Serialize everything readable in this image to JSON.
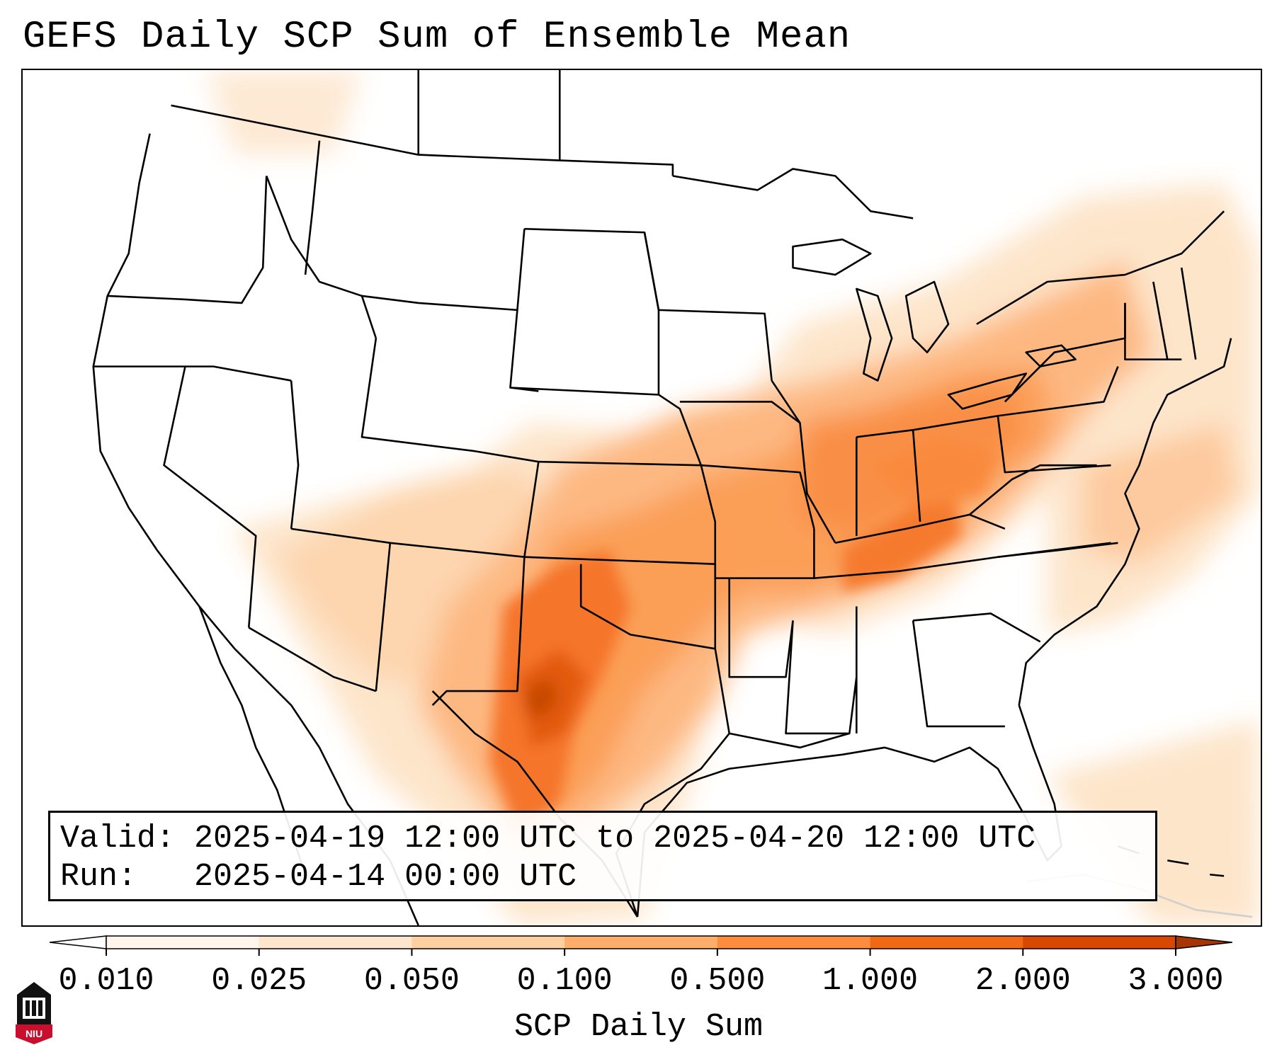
{
  "title": "GEFS Daily SCP Sum of Ensemble Mean",
  "info": {
    "valid_line": "Valid: 2025-04-19 12:00 UTC to 2025-04-20 12:00 UTC",
    "run_line": "Run:   2025-04-14 00:00 UTC"
  },
  "colorbar": {
    "label": "SCP Daily Sum",
    "ticks": [
      "0.010",
      "0.025",
      "0.050",
      "0.100",
      "0.500",
      "1.000",
      "2.000",
      "3.000"
    ],
    "colors": [
      "#fff5eb",
      "#fee6ce",
      "#fdd0a2",
      "#fdae6b",
      "#fd8d3c",
      "#f16913",
      "#d94801",
      "#a63603"
    ],
    "extend": "both"
  },
  "map": {
    "projection": "Lambert conformal",
    "region": "Continental United States",
    "features": [
      "state-borders",
      "coastlines",
      "great-lakes"
    ]
  },
  "logo": {
    "text": "NIU",
    "icon": "university-building-icon"
  }
}
